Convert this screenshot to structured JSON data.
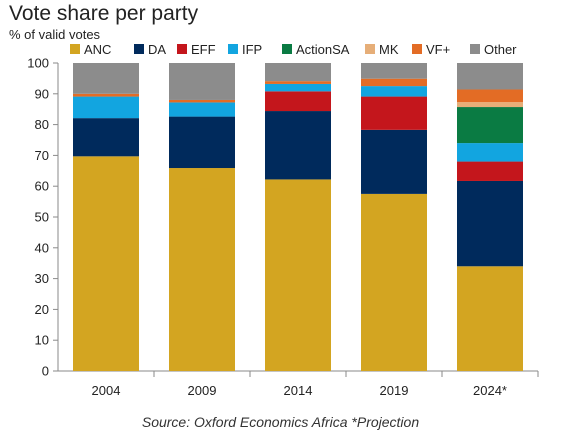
{
  "title": "Vote share per party",
  "subtitle": "% of valid votes",
  "source": "Source: Oxford Economics Africa *Projection",
  "chart_data": {
    "type": "bar",
    "stacked": true,
    "title": "Vote share per party",
    "ylabel": "% of valid votes",
    "xlabel": "",
    "ylim": [
      0,
      100
    ],
    "yticks": [
      0,
      10,
      20,
      30,
      40,
      50,
      60,
      70,
      80,
      90,
      100
    ],
    "grid": false,
    "legend_position": "top",
    "categories": [
      "2004",
      "2009",
      "2014",
      "2019",
      "2024*"
    ],
    "series": [
      {
        "name": "ANC",
        "color": "#D3A521",
        "values": [
          69.7,
          65.9,
          62.2,
          57.5,
          34.0
        ]
      },
      {
        "name": "DA",
        "color": "#002A5C",
        "values": [
          12.4,
          16.7,
          22.2,
          20.8,
          27.7
        ]
      },
      {
        "name": "EFF",
        "color": "#C4161C",
        "values": [
          0,
          0,
          6.4,
          10.8,
          6.3
        ]
      },
      {
        "name": "IFP",
        "color": "#12A5E0",
        "values": [
          7.0,
          4.6,
          2.4,
          3.4,
          6.0
        ]
      },
      {
        "name": "ActionSA",
        "color": "#0A7B43",
        "values": [
          0,
          0,
          0,
          0,
          11.7
        ]
      },
      {
        "name": "MK",
        "color": "#E6AE78",
        "values": [
          0,
          0,
          0,
          0,
          1.6
        ]
      },
      {
        "name": "VF+",
        "color": "#E36C25",
        "values": [
          0.9,
          0.8,
          0.9,
          2.4,
          4.1
        ]
      },
      {
        "name": "Other",
        "color": "#8C8C8C",
        "values": [
          10.0,
          12.0,
          5.9,
          5.1,
          8.6
        ]
      }
    ]
  }
}
